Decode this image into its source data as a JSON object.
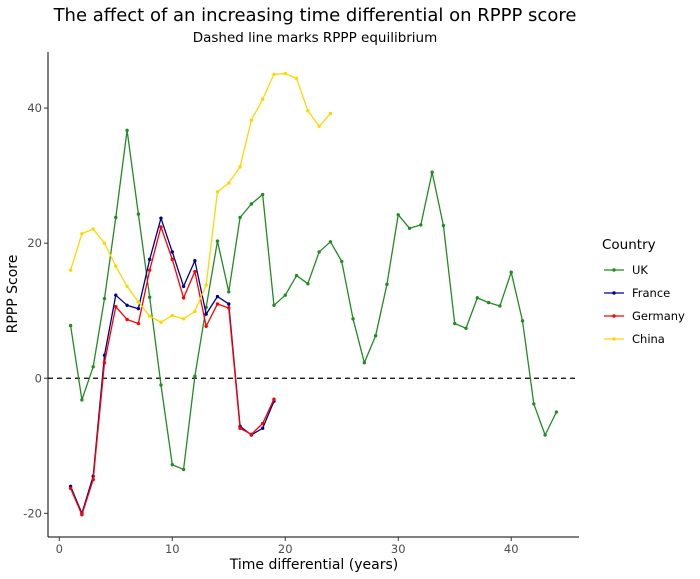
{
  "chart_data": {
    "type": "line",
    "title": "The affect of an increasing time differential on RPPP score",
    "subtitle": "Dashed line marks RPPP equilibrium",
    "xlabel": "Time differential (years)",
    "ylabel": "RPPP Score",
    "xlim": [
      -1,
      46
    ],
    "ylim": [
      -23.5,
      48.3
    ],
    "x_ticks": [
      0,
      10,
      20,
      30,
      40
    ],
    "y_ticks": [
      -20,
      0,
      20,
      40
    ],
    "reference_line": {
      "y": 0,
      "style": "dashed",
      "color": "#000000"
    },
    "grid": false,
    "legend": {
      "title": "Country",
      "position": "right"
    },
    "series": [
      {
        "name": "UK",
        "color": "#228B22",
        "x": [
          1,
          2,
          3,
          4,
          5,
          6,
          7,
          8,
          9,
          10,
          11,
          12,
          13,
          14,
          15,
          16,
          17,
          18,
          19,
          20,
          21,
          22,
          23,
          24,
          25,
          26,
          27,
          28,
          29,
          30,
          31,
          32,
          33,
          34,
          35,
          36,
          37,
          38,
          39,
          40,
          41,
          42,
          43,
          44
        ],
        "values": [
          7.8,
          -3.2,
          1.7,
          11.8,
          23.8,
          36.7,
          24.3,
          12.0,
          -1.0,
          -12.8,
          -13.5,
          0.3,
          10.5,
          20.3,
          12.8,
          23.8,
          25.8,
          27.2,
          10.8,
          12.3,
          15.2,
          14.0,
          18.7,
          20.2,
          17.3,
          8.8,
          2.3,
          6.3,
          13.9,
          24.2,
          22.2,
          22.7,
          30.5,
          22.6,
          8.1,
          7.4,
          11.9,
          11.2,
          10.7,
          15.7,
          8.5,
          -3.8,
          -8.4,
          -5.0
        ]
      },
      {
        "name": "France",
        "color": "#00008B",
        "x": [
          1,
          2,
          3,
          4,
          5,
          6,
          7,
          8,
          9,
          10,
          11,
          12,
          13,
          14,
          15,
          16,
          17,
          18,
          19
        ],
        "values": [
          -16.0,
          -20.0,
          -14.5,
          3.4,
          12.3,
          10.8,
          10.3,
          17.6,
          23.7,
          18.7,
          13.6,
          17.4,
          9.5,
          12.1,
          11.0,
          -7.1,
          -8.4,
          -7.4,
          -3.4
        ]
      },
      {
        "name": "Germany",
        "color": "#FF0000",
        "x": [
          1,
          2,
          3,
          4,
          5,
          6,
          7,
          8,
          9,
          10,
          11,
          12,
          13,
          14,
          15,
          16,
          17,
          18,
          19
        ],
        "values": [
          -16.3,
          -20.2,
          -15.0,
          2.3,
          10.6,
          8.7,
          8.1,
          16.0,
          22.4,
          17.6,
          11.9,
          15.8,
          7.7,
          11.0,
          10.4,
          -7.4,
          -8.3,
          -6.7,
          -3.1
        ]
      },
      {
        "name": "China",
        "color": "#FFD700",
        "x": [
          1,
          2,
          3,
          4,
          5,
          6,
          7,
          8,
          9,
          10,
          11,
          12,
          13,
          14,
          15,
          16,
          17,
          18,
          19,
          20,
          21,
          22,
          23,
          24
        ],
        "values": [
          16.0,
          21.4,
          22.1,
          20.0,
          16.6,
          13.6,
          11.3,
          9.2,
          8.3,
          9.3,
          8.8,
          9.9,
          13.8,
          27.6,
          28.9,
          31.3,
          38.2,
          41.3,
          45.0,
          45.1,
          44.4,
          39.6,
          37.3,
          39.2
        ]
      }
    ]
  }
}
